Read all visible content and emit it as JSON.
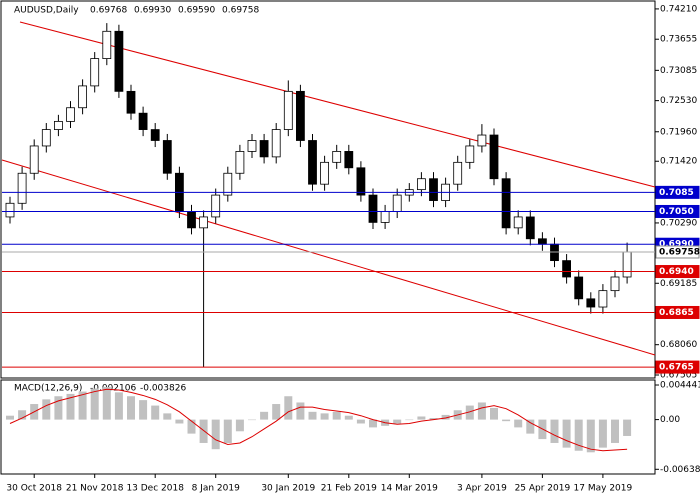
{
  "chart_data": {
    "type": "candlestick",
    "symbol": "AUDUSD,Daily",
    "quote": [
      0.69768,
      {
        "value": 0.6993,
        "label": "0.69930"
      },
      {
        "value": 0.6959,
        "label": "0.69590"
      },
      0.69758
    ],
    "categories": [
      null,
      null,
      "30 Oct 2018",
      null,
      null,
      null,
      null,
      "21 Nov 2018",
      null,
      null,
      null,
      null,
      "13 Dec 2018",
      null,
      null,
      null,
      null,
      "8 Jan 2019",
      null,
      null,
      null,
      null,
      null,
      "30 Jan 2019",
      null,
      null,
      null,
      null,
      "21 Feb 2019",
      null,
      null,
      null,
      null,
      "14 Mar 2019",
      null,
      null,
      null,
      null,
      null,
      "3 Apr 2019",
      null,
      null,
      null,
      null,
      "25 Apr 2019",
      null,
      null,
      null,
      null,
      "17 May 2019",
      null,
      null
    ],
    "open": [
      0.704,
      0.7065,
      0.712,
      0.717,
      0.72,
      0.7215,
      0.724,
      0.728,
      0.733,
      0.738,
      0.727,
      0.723,
      0.72,
      0.718,
      0.712,
      0.705,
      0.702,
      0.704,
      0.708,
      0.712,
      0.716,
      0.718,
      0.715,
      0.72,
      0.727,
      0.718,
      0.71,
      0.714,
      0.716,
      0.713,
      0.708,
      0.703,
      0.705,
      0.708,
      0.709,
      0.711,
      0.707,
      0.71,
      0.714,
      0.717,
      0.719,
      0.711,
      0.702,
      0.704,
      0.7,
      0.699,
      0.696,
      0.693,
      0.689,
      0.6875,
      0.6905,
      0.693
    ],
    "high": [
      0.7077,
      0.7132,
      0.7182,
      0.7212,
      0.7227,
      0.7252,
      0.7292,
      0.7342,
      0.7395,
      0.7392,
      0.7282,
      0.7242,
      0.7212,
      0.7192,
      0.7132,
      0.7062,
      0.7052,
      0.7092,
      0.7132,
      0.7172,
      0.7192,
      0.7192,
      0.7212,
      0.729,
      0.7282,
      0.7192,
      0.7152,
      0.7172,
      0.7172,
      0.7142,
      0.7092,
      0.7062,
      0.7092,
      0.7102,
      0.7122,
      0.7122,
      0.7112,
      0.7152,
      0.7182,
      0.721,
      0.7202,
      0.7122,
      0.7052,
      0.7052,
      0.7012,
      0.7002,
      0.6972,
      0.6942,
      0.6902,
      0.6917,
      0.6942,
      0.6993
    ],
    "low": [
      0.7028,
      0.7053,
      0.7108,
      0.7158,
      0.7188,
      0.7203,
      0.7228,
      0.7268,
      0.7318,
      0.7258,
      0.7218,
      0.7188,
      0.7168,
      0.7108,
      0.7038,
      0.7008,
      0.6765,
      0.7028,
      0.7068,
      0.7108,
      0.7148,
      0.7138,
      0.7138,
      0.7188,
      0.7168,
      0.7088,
      0.7088,
      0.7128,
      0.7118,
      0.7068,
      0.7018,
      0.7018,
      0.7038,
      0.7068,
      0.7078,
      0.7058,
      0.7058,
      0.7088,
      0.7128,
      0.7158,
      0.7098,
      0.7008,
      0.7008,
      0.6988,
      0.6978,
      0.6948,
      0.6918,
      0.6878,
      0.6863,
      0.6863,
      0.6893,
      0.6918
    ],
    "close": [
      0.7065,
      0.712,
      0.717,
      0.72,
      0.7215,
      0.724,
      0.728,
      0.733,
      0.738,
      0.727,
      0.723,
      0.72,
      0.718,
      0.712,
      0.705,
      0.702,
      0.704,
      0.708,
      0.712,
      0.716,
      0.718,
      0.715,
      0.72,
      0.727,
      0.718,
      0.71,
      0.714,
      0.716,
      0.713,
      0.708,
      0.703,
      0.705,
      0.708,
      0.709,
      0.711,
      0.707,
      0.71,
      0.714,
      0.717,
      0.719,
      0.711,
      0.702,
      0.704,
      0.7,
      0.699,
      0.696,
      0.693,
      0.689,
      0.6875,
      0.6905,
      0.693,
      0.69758
    ],
    "ylim": [
      0.6745,
      0.743
    ],
    "yticks": [
      {
        "value": 0.7421,
        "label": "0.74210"
      },
      0.73655,
      0.73085,
      {
        "value": 0.7253,
        "label": "0.72530"
      },
      {
        "value": 0.7196,
        "label": "0.71960"
      },
      {
        "value": 0.7142,
        "label": "0.71420"
      },
      {
        "value": 0.7029,
        "label": "0.70290"
      },
      0.69185,
      {
        "value": 0.6806,
        "label": "0.68060"
      },
      0.67505
    ],
    "levels": [
      0.7085,
      {
        "value": 0.705,
        "label": "0.7050"
      },
      {
        "value": 0.699,
        "label": "0.6990"
      },
      0.69758,
      {
        "value": 0.694,
        "label": "0.6940"
      },
      0.6865,
      0.6765
    ],
    "level_colors": [
      "#0000cc",
      "#0000cc",
      "#0000cc",
      "#aaaaaa",
      "#dd0000",
      "#dd0000",
      "#dd0000"
    ],
    "macd_title": "MACD(12,26,9)",
    "macd_values": [
      -0.002106,
      -0.003826
    ],
    "macd": [
      0.0005,
      0.0012,
      0.002,
      0.0026,
      0.003,
      0.0033,
      0.0036,
      0.004,
      0.0042,
      0.0035,
      0.003,
      0.0025,
      0.0018,
      0.0008,
      -0.0005,
      -0.0018,
      -0.003,
      -0.0038,
      -0.003,
      -0.0015,
      0.0,
      0.001,
      0.002,
      0.003,
      0.0022,
      0.001,
      0.0008,
      0.001,
      0.0005,
      -0.0005,
      -0.001,
      -0.0008,
      -0.0005,
      0.0,
      0.0004,
      0.0002,
      0.0006,
      0.0012,
      0.0018,
      0.0022,
      0.0015,
      -0.0002,
      -0.001,
      -0.0018,
      -0.0025,
      -0.003,
      -0.0036,
      -0.004,
      -0.0042,
      -0.0036,
      -0.003,
      -0.0021
    ],
    "signal": [
      -0.0005,
      0.0002,
      0.001,
      0.0018,
      0.0024,
      0.0028,
      0.0032,
      0.0036,
      0.0039,
      0.0038,
      0.0035,
      0.0031,
      0.0026,
      0.0019,
      0.001,
      -0.0002,
      -0.0014,
      -0.0026,
      -0.0032,
      -0.003,
      -0.0022,
      -0.0012,
      -0.0002,
      0.001,
      0.0016,
      0.0016,
      0.0013,
      0.0011,
      0.0009,
      0.0005,
      0.0,
      -0.0004,
      -0.0006,
      -0.0005,
      -0.0002,
      0.0,
      0.0002,
      0.0006,
      0.001,
      0.0015,
      0.0018,
      0.0014,
      0.0006,
      -0.0004,
      -0.0012,
      -0.002,
      -0.0027,
      -0.0033,
      -0.0038,
      -0.004,
      -0.0039,
      -0.0038
    ],
    "macd_ylim": [
      -0.0066,
      0.0047
    ],
    "macd_yticks": [
      0.0044413,
      {
        "value": 0,
        "label": "0.00"
      },
      -0.006381
    ],
    "bull_color": "#ffffff",
    "bear_color": "#000000",
    "macd_color": "#c0c0c0",
    "signal_color": "#dd0000"
  }
}
